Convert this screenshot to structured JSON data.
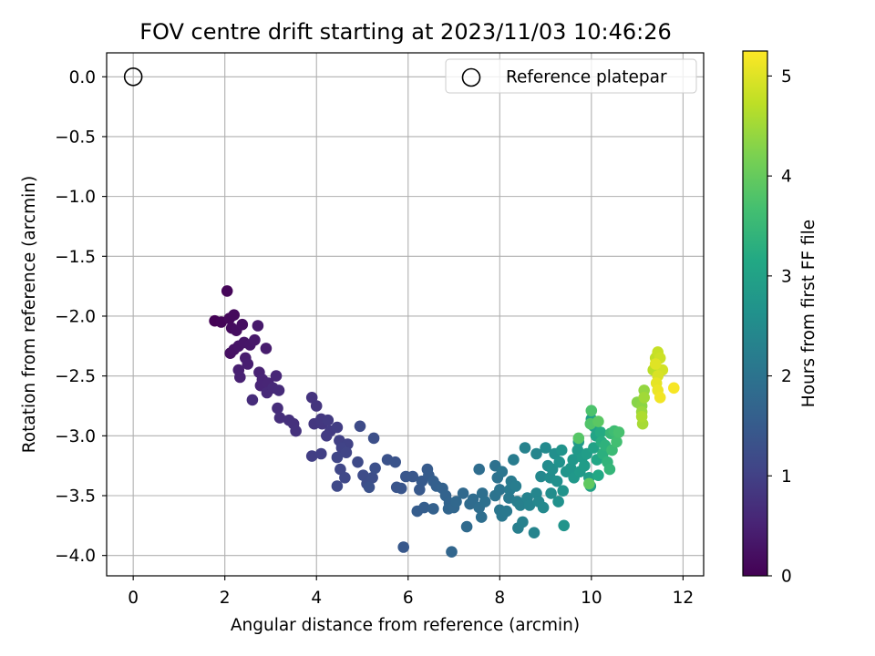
{
  "chart_data": {
    "type": "scatter",
    "title": "FOV centre drift starting at 2023/11/03 10:46:26",
    "xlabel": "Angular distance from reference (arcmin)",
    "ylabel": "Rotation from reference (arcmin)",
    "xlim": [
      -0.58,
      12.45
    ],
    "ylim": [
      -4.17,
      0.2
    ],
    "xticks": [
      0,
      2,
      4,
      6,
      8,
      10,
      12
    ],
    "yticks": [
      0.0,
      -0.5,
      -1.0,
      -1.5,
      -2.0,
      -2.5,
      -3.0,
      -3.5,
      -4.0
    ],
    "xtick_labels": [
      "0",
      "2",
      "4",
      "6",
      "8",
      "10",
      "12"
    ],
    "ytick_labels": [
      "0.0",
      "−0.5",
      "−1.0",
      "−1.5",
      "−2.0",
      "−2.5",
      "−3.0",
      "−3.5",
      "−4.0"
    ],
    "grid": true,
    "legend": {
      "position": "top-right",
      "entries": [
        "Reference platepar"
      ]
    },
    "reference_point": {
      "x": 0,
      "y": 0,
      "marker": "open-circle"
    },
    "colorbar": {
      "label": "Hours from first FF file",
      "range": [
        0,
        5.25
      ],
      "ticks": [
        0,
        1,
        2,
        3,
        4,
        5
      ],
      "tick_labels": [
        "0",
        "1",
        "2",
        "3",
        "4",
        "5"
      ],
      "colormap": "viridis"
    },
    "series": [
      {
        "points": [
          [
            1.78,
            -2.04,
            0.02
          ],
          [
            1.92,
            -2.05,
            0.05
          ],
          [
            2.05,
            -1.79,
            0.08
          ],
          [
            2.1,
            -2.02,
            0.1
          ],
          [
            2.2,
            -1.99,
            0.12
          ],
          [
            2.15,
            -2.1,
            0.15
          ],
          [
            2.25,
            -2.12,
            0.18
          ],
          [
            2.38,
            -2.07,
            0.2
          ],
          [
            2.12,
            -2.31,
            0.23
          ],
          [
            2.2,
            -2.28,
            0.25
          ],
          [
            2.3,
            -2.25,
            0.28
          ],
          [
            2.42,
            -2.22,
            0.3
          ],
          [
            2.55,
            -2.24,
            0.32
          ],
          [
            2.65,
            -2.2,
            0.35
          ],
          [
            2.72,
            -2.08,
            0.37
          ],
          [
            2.9,
            -2.27,
            0.4
          ],
          [
            2.45,
            -2.35,
            0.42
          ],
          [
            2.5,
            -2.4,
            0.44
          ],
          [
            2.3,
            -2.45,
            0.46
          ],
          [
            2.33,
            -2.51,
            0.48
          ],
          [
            2.75,
            -2.47,
            0.5
          ],
          [
            2.82,
            -2.53,
            0.52
          ],
          [
            2.78,
            -2.58,
            0.54
          ],
          [
            2.95,
            -2.56,
            0.56
          ],
          [
            3.12,
            -2.5,
            0.58
          ],
          [
            2.92,
            -2.64,
            0.6
          ],
          [
            3.05,
            -2.6,
            0.62
          ],
          [
            3.18,
            -2.62,
            0.64
          ],
          [
            2.6,
            -2.7,
            0.66
          ],
          [
            3.15,
            -2.77,
            0.68
          ],
          [
            3.2,
            -2.85,
            0.7
          ],
          [
            3.4,
            -2.87,
            0.72
          ],
          [
            3.5,
            -2.9,
            0.74
          ],
          [
            3.55,
            -2.96,
            0.76
          ],
          [
            3.9,
            -2.68,
            0.78
          ],
          [
            4.0,
            -2.75,
            0.8
          ],
          [
            3.95,
            -2.9,
            0.82
          ],
          [
            4.12,
            -2.9,
            0.84
          ],
          [
            4.1,
            -2.86,
            0.86
          ],
          [
            4.25,
            -2.87,
            0.88
          ],
          [
            4.3,
            -2.96,
            0.9
          ],
          [
            4.22,
            -3.0,
            0.92
          ],
          [
            4.45,
            -2.93,
            0.94
          ],
          [
            3.9,
            -3.17,
            0.96
          ],
          [
            4.1,
            -3.15,
            0.98
          ],
          [
            4.5,
            -3.04,
            1.0
          ],
          [
            4.68,
            -3.07,
            1.02
          ],
          [
            4.55,
            -3.1,
            1.04
          ],
          [
            4.65,
            -3.14,
            1.06
          ],
          [
            4.45,
            -3.18,
            1.08
          ],
          [
            4.52,
            -3.28,
            1.1
          ],
          [
            4.62,
            -3.35,
            1.12
          ],
          [
            4.45,
            -3.42,
            1.14
          ],
          [
            4.9,
            -3.22,
            1.16
          ],
          [
            4.95,
            -2.92,
            1.18
          ],
          [
            5.02,
            -3.33,
            1.2
          ],
          [
            5.1,
            -3.4,
            1.22
          ],
          [
            5.22,
            -3.35,
            1.24
          ],
          [
            5.25,
            -3.02,
            1.26
          ],
          [
            5.28,
            -3.27,
            1.28
          ],
          [
            5.15,
            -3.43,
            1.3
          ],
          [
            5.55,
            -3.2,
            1.32
          ],
          [
            5.72,
            -3.22,
            1.34
          ],
          [
            5.75,
            -3.43,
            1.36
          ],
          [
            5.85,
            -3.44,
            1.38
          ],
          [
            5.95,
            -3.34,
            1.4
          ],
          [
            6.1,
            -3.34,
            1.42
          ],
          [
            5.9,
            -3.93,
            1.44
          ],
          [
            6.25,
            -3.45,
            1.46
          ],
          [
            6.3,
            -3.38,
            1.48
          ],
          [
            6.42,
            -3.28,
            1.5
          ],
          [
            6.45,
            -3.33,
            1.52
          ],
          [
            6.2,
            -3.63,
            1.54
          ],
          [
            6.35,
            -3.6,
            1.56
          ],
          [
            6.55,
            -3.38,
            1.58
          ],
          [
            6.62,
            -3.42,
            1.6
          ],
          [
            6.55,
            -3.61,
            1.62
          ],
          [
            6.75,
            -3.44,
            1.64
          ],
          [
            6.82,
            -3.5,
            1.66
          ],
          [
            6.9,
            -3.56,
            1.68
          ],
          [
            6.88,
            -3.61,
            1.7
          ],
          [
            6.95,
            -3.97,
            1.72
          ],
          [
            7.0,
            -3.6,
            1.74
          ],
          [
            7.05,
            -3.55,
            1.76
          ],
          [
            7.2,
            -3.48,
            1.78
          ],
          [
            7.28,
            -3.76,
            1.8
          ],
          [
            7.35,
            -3.57,
            1.82
          ],
          [
            7.42,
            -3.53,
            1.84
          ],
          [
            7.55,
            -3.28,
            1.86
          ],
          [
            7.55,
            -3.6,
            1.88
          ],
          [
            7.6,
            -3.68,
            1.9
          ],
          [
            7.62,
            -3.48,
            1.92
          ],
          [
            7.68,
            -3.55,
            1.94
          ],
          [
            7.9,
            -3.25,
            1.96
          ],
          [
            7.95,
            -3.35,
            1.98
          ],
          [
            7.9,
            -3.5,
            2.0
          ],
          [
            8.0,
            -3.45,
            2.02
          ],
          [
            8.05,
            -3.3,
            2.04
          ],
          [
            8.0,
            -3.62,
            2.06
          ],
          [
            8.05,
            -3.67,
            2.08
          ],
          [
            8.15,
            -3.63,
            2.1
          ],
          [
            8.2,
            -3.52,
            2.12
          ],
          [
            8.22,
            -3.45,
            2.14
          ],
          [
            8.25,
            -3.38,
            2.16
          ],
          [
            8.3,
            -3.2,
            2.18
          ],
          [
            8.35,
            -3.42,
            2.2
          ],
          [
            8.38,
            -3.55,
            2.22
          ],
          [
            8.4,
            -3.77,
            2.24
          ],
          [
            8.45,
            -3.58,
            2.26
          ],
          [
            8.5,
            -3.72,
            2.28
          ],
          [
            8.55,
            -3.1,
            2.3
          ],
          [
            8.6,
            -3.52,
            2.32
          ],
          [
            8.65,
            -3.58,
            2.34
          ],
          [
            8.75,
            -3.81,
            2.36
          ],
          [
            8.8,
            -3.15,
            2.38
          ],
          [
            8.8,
            -3.48,
            2.4
          ],
          [
            8.85,
            -3.55,
            2.42
          ],
          [
            8.9,
            -3.34,
            2.44
          ],
          [
            8.95,
            -3.6,
            2.46
          ],
          [
            9.0,
            -3.1,
            2.48
          ],
          [
            9.05,
            -3.25,
            2.5
          ],
          [
            9.1,
            -3.35,
            2.52
          ],
          [
            9.12,
            -3.48,
            2.54
          ],
          [
            9.15,
            -3.28,
            2.56
          ],
          [
            9.2,
            -3.15,
            2.58
          ],
          [
            9.25,
            -3.38,
            2.6
          ],
          [
            9.28,
            -3.55,
            2.62
          ],
          [
            9.3,
            -3.22,
            2.64
          ],
          [
            9.35,
            -3.12,
            2.66
          ],
          [
            9.38,
            -3.46,
            2.68
          ],
          [
            9.4,
            -3.75,
            2.7
          ],
          [
            9.45,
            -3.3,
            2.72
          ],
          [
            9.55,
            -3.27,
            2.74
          ],
          [
            9.6,
            -3.2,
            2.76
          ],
          [
            9.62,
            -3.35,
            2.78
          ],
          [
            9.7,
            -3.12,
            2.8
          ],
          [
            9.72,
            -3.05,
            2.82
          ],
          [
            9.75,
            -3.3,
            2.84
          ],
          [
            9.8,
            -3.18,
            2.86
          ],
          [
            9.85,
            -3.25,
            2.88
          ],
          [
            9.9,
            -3.15,
            2.9
          ],
          [
            9.95,
            -3.35,
            2.92
          ],
          [
            9.98,
            -3.42,
            2.94
          ],
          [
            10.0,
            -2.86,
            2.96
          ],
          [
            10.05,
            -2.92,
            2.98
          ],
          [
            10.05,
            -3.1,
            3.0
          ],
          [
            10.1,
            -3.0,
            3.05
          ],
          [
            10.12,
            -3.2,
            3.1
          ],
          [
            10.15,
            -3.33,
            3.15
          ],
          [
            10.2,
            -2.97,
            3.2
          ],
          [
            10.22,
            -3.05,
            3.25
          ],
          [
            10.25,
            -3.15,
            3.3
          ],
          [
            10.3,
            -3.08,
            3.35
          ],
          [
            10.35,
            -3.22,
            3.4
          ],
          [
            10.4,
            -3.28,
            3.45
          ],
          [
            10.42,
            -2.98,
            3.5
          ],
          [
            10.45,
            -3.12,
            3.55
          ],
          [
            10.5,
            -2.96,
            3.6
          ],
          [
            10.55,
            -3.05,
            3.65
          ],
          [
            10.6,
            -2.97,
            3.7
          ],
          [
            10.0,
            -2.79,
            3.75
          ],
          [
            9.98,
            -2.9,
            3.8
          ],
          [
            9.72,
            -3.02,
            3.85
          ],
          [
            10.15,
            -2.88,
            3.9
          ],
          [
            9.95,
            -3.4,
            3.95
          ],
          [
            11.0,
            -2.72,
            4.3
          ],
          [
            11.1,
            -2.75,
            4.35
          ],
          [
            11.15,
            -2.62,
            4.4
          ],
          [
            11.1,
            -2.8,
            4.45
          ],
          [
            11.15,
            -2.68,
            4.5
          ],
          [
            11.12,
            -2.9,
            4.55
          ],
          [
            11.1,
            -2.84,
            4.6
          ],
          [
            11.35,
            -2.45,
            4.7
          ],
          [
            11.4,
            -2.35,
            4.75
          ],
          [
            11.45,
            -2.3,
            4.8
          ],
          [
            11.5,
            -2.35,
            4.85
          ],
          [
            11.55,
            -2.45,
            4.9
          ],
          [
            11.45,
            -2.5,
            4.95
          ],
          [
            11.4,
            -2.4,
            5.0
          ],
          [
            11.42,
            -2.56,
            5.05
          ],
          [
            11.45,
            -2.62,
            5.1
          ],
          [
            11.5,
            -2.68,
            5.15
          ],
          [
            11.8,
            -2.6,
            5.2
          ]
        ]
      }
    ]
  }
}
